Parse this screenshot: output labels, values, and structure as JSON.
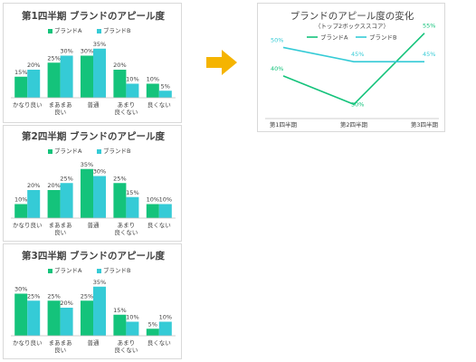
{
  "colors": {
    "brand_a": "#14c37b",
    "brand_b": "#35cbd6",
    "arrow": "#f5b400",
    "axis": "#bfbfbf",
    "text": "#404040"
  },
  "chart_data": [
    {
      "type": "bar",
      "title": "第1四半期 ブランドのアピール度",
      "legend": "top",
      "categories": [
        "かなり良い",
        "まあまあ良い",
        "普通",
        "あまり良くない",
        "良くない"
      ],
      "category_lines": [
        [
          "かなり良い"
        ],
        [
          "まあまあ",
          "良い"
        ],
        [
          "普通"
        ],
        [
          "あまり",
          "良くない"
        ],
        [
          "良くない"
        ]
      ],
      "series": [
        {
          "name": "ブランドA",
          "values": [
            15,
            25,
            30,
            20,
            10
          ],
          "labels": [
            "15%",
            "25%",
            "30%",
            "20%",
            "10%"
          ]
        },
        {
          "name": "ブランドB",
          "values": [
            20,
            30,
            35,
            10,
            5
          ],
          "labels": [
            "20%",
            "30%",
            "35%",
            "10%",
            "5%"
          ]
        }
      ],
      "ylim": [
        0,
        40
      ]
    },
    {
      "type": "bar",
      "title": "第2四半期 ブランドのアピール度",
      "legend": "top",
      "categories": [
        "かなり良い",
        "まあまあ良い",
        "普通",
        "あまり良くない",
        "良くない"
      ],
      "category_lines": [
        [
          "かなり良い"
        ],
        [
          "まあまあ",
          "良い"
        ],
        [
          "普通"
        ],
        [
          "あまり",
          "良くない"
        ],
        [
          "良くない"
        ]
      ],
      "series": [
        {
          "name": "ブランドA",
          "values": [
            10,
            20,
            35,
            25,
            10
          ],
          "labels": [
            "10%",
            "20%",
            "35%",
            "25%",
            "10%"
          ]
        },
        {
          "name": "ブランドB",
          "values": [
            20,
            25,
            30,
            15,
            10
          ],
          "labels": [
            "20%",
            "25%",
            "30%",
            "15%",
            "10%"
          ]
        }
      ],
      "ylim": [
        0,
        40
      ]
    },
    {
      "type": "bar",
      "title": "第3四半期 ブランドのアピール度",
      "legend": "top",
      "categories": [
        "かなり良い",
        "まあまあ良い",
        "普通",
        "あまり良くない",
        "良くない"
      ],
      "category_lines": [
        [
          "かなり良い"
        ],
        [
          "まあまあ",
          "良い"
        ],
        [
          "普通"
        ],
        [
          "あまり",
          "良くない"
        ],
        [
          "良くない"
        ]
      ],
      "series": [
        {
          "name": "ブランドA",
          "values": [
            30,
            25,
            25,
            15,
            5
          ],
          "labels": [
            "30%",
            "25%",
            "25%",
            "15%",
            "5%"
          ]
        },
        {
          "name": "ブランドB",
          "values": [
            25,
            20,
            35,
            10,
            10
          ],
          "labels": [
            "25%",
            "20%",
            "35%",
            "10%",
            "10%"
          ]
        }
      ],
      "ylim": [
        0,
        40
      ]
    },
    {
      "type": "line",
      "title": "ブランドのアピール度の変化",
      "subtitle": "（トップ2ボックススコア）",
      "legend": "top",
      "categories": [
        "第1四半期",
        "第2四半期",
        "第3四半期"
      ],
      "series": [
        {
          "name": "ブランドA",
          "values": [
            40,
            30,
            55
          ],
          "labels": [
            "40%",
            "30%",
            "55%"
          ]
        },
        {
          "name": "ブランドB",
          "values": [
            50,
            45,
            45
          ],
          "labels": [
            "50%",
            "45%",
            "45%"
          ]
        }
      ],
      "ylim": [
        25,
        60
      ]
    }
  ]
}
